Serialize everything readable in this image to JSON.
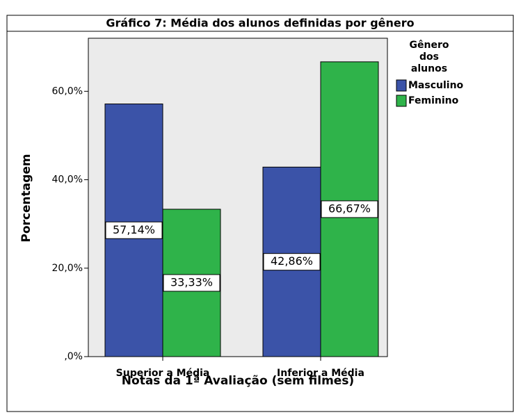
{
  "chart_data": {
    "type": "bar",
    "title": "Gráfico 7: Média dos alunos definidas por gênero",
    "categories": [
      "Superior a Média",
      "Inferior a Média"
    ],
    "series": [
      {
        "name": "Masculino",
        "color": "#3b53a8",
        "values": [
          57.14,
          42.86
        ],
        "value_labels": [
          "57,14%",
          "42,86%"
        ]
      },
      {
        "name": "Feminino",
        "color": "#2fb34a",
        "values": [
          33.33,
          66.67
        ],
        "value_labels": [
          "33,33%",
          "66,67%"
        ]
      }
    ],
    "legend_title": [
      "Gênero",
      "dos",
      "alunos"
    ],
    "x_label": "Notas da 1ª Avaliação (sem filmes)",
    "y_label": "Porcentagem",
    "ylim": [
      0,
      72
    ],
    "yticks": [
      {
        "value": 0,
        "label": ",0%"
      },
      {
        "value": 20,
        "label": "20,0%"
      },
      {
        "value": 40,
        "label": "40,0%"
      },
      {
        "value": 60,
        "label": "60,0%"
      }
    ],
    "legend_position": "right"
  }
}
